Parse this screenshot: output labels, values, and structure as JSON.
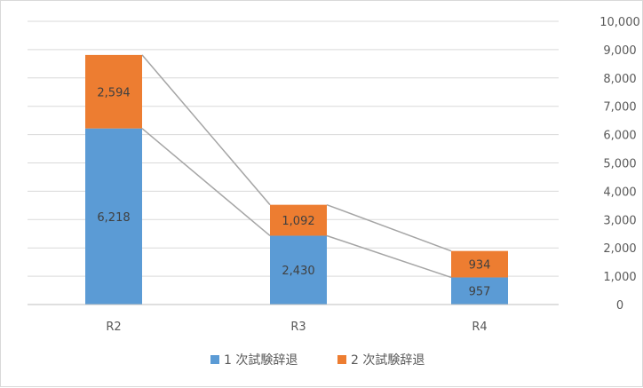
{
  "chart_data": {
    "type": "bar",
    "stacked": true,
    "categories": [
      "R2",
      "R3",
      "R4"
    ],
    "series": [
      {
        "name": "1 次試験辞退",
        "values": [
          6218,
          2430,
          957
        ],
        "labels": [
          "6,218",
          "2,430",
          "957"
        ],
        "color": "#5b9bd5"
      },
      {
        "name": "2 次試験辞退",
        "values": [
          2594,
          1092,
          934
        ],
        "labels": [
          "2,594",
          "1,092",
          "934"
        ],
        "color": "#ed7d31"
      }
    ],
    "ylim": [
      0,
      10000
    ],
    "yticks": [
      0,
      1000,
      2000,
      3000,
      4000,
      5000,
      6000,
      7000,
      8000,
      9000,
      10000
    ],
    "ytick_labels": [
      "0",
      "1,000",
      "2,000",
      "3,000",
      "4,000",
      "5,000",
      "6,000",
      "7,000",
      "8,000",
      "9,000",
      "10,000"
    ],
    "y_axis_position": "right",
    "grid": true,
    "series_lines": true,
    "legend": "bottom",
    "title": "",
    "xlabel": "",
    "ylabel": ""
  }
}
